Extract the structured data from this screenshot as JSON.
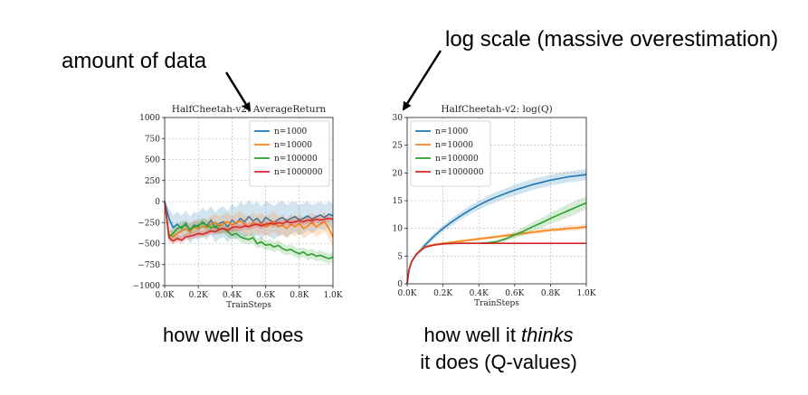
{
  "annotations": {
    "amount_of_data": "amount of data",
    "log_scale": "log scale (massive overestimation)"
  },
  "captions": {
    "left": "how well it does",
    "right_line1_pre": "how well it ",
    "right_line1_em": "thinks",
    "right_line2": "it does (Q-values)"
  },
  "colors": {
    "n1000": "#1f77b4",
    "n10000": "#ff7f0e",
    "n100000": "#2ca02c",
    "n1000000": "#d62728",
    "grid": "#b0b0b0"
  },
  "chart_data": [
    {
      "type": "line",
      "title": "HalfCheetah-v2: AverageReturn",
      "xlabel": "TrainSteps",
      "ylabel": "",
      "xlim": [
        0,
        1000
      ],
      "ylim": [
        -1000,
        1000
      ],
      "xticks": [
        0,
        200,
        400,
        600,
        800,
        1000
      ],
      "xtick_labels": [
        "0.0K",
        "0.2K",
        "0.4K",
        "0.6K",
        "0.8K",
        "1.0K"
      ],
      "yticks": [
        -1000,
        -750,
        -500,
        -250,
        0,
        250,
        500,
        750,
        1000
      ],
      "ytick_labels": [
        "−1000",
        "−750",
        "−500",
        "−250",
        "0",
        "250",
        "500",
        "750",
        "1000"
      ],
      "grid": true,
      "legend_position": "top-right",
      "x": [
        0,
        25,
        50,
        75,
        100,
        125,
        150,
        175,
        200,
        225,
        250,
        275,
        300,
        325,
        350,
        375,
        400,
        425,
        450,
        475,
        500,
        525,
        550,
        575,
        600,
        625,
        650,
        675,
        700,
        725,
        750,
        775,
        800,
        825,
        850,
        875,
        900,
        925,
        950,
        975,
        1000
      ],
      "series": [
        {
          "name": "n=1000",
          "color_key": "n1000",
          "values": [
            0,
            -200,
            -310,
            -270,
            -320,
            -260,
            -340,
            -280,
            -300,
            -240,
            -290,
            -220,
            -310,
            -260,
            -240,
            -300,
            -220,
            -260,
            -200,
            -240,
            -180,
            -230,
            -200,
            -260,
            -190,
            -220,
            -250,
            -210,
            -190,
            -230,
            -200,
            -180,
            -220,
            -200,
            -170,
            -210,
            -180,
            -160,
            -190,
            -150,
            -170
          ],
          "spread": [
            30,
            120,
            150,
            150,
            150,
            150,
            160,
            160,
            160,
            170,
            170,
            170,
            180,
            180,
            180,
            190,
            190,
            190,
            200,
            200,
            200,
            200,
            200,
            200,
            200,
            200,
            200,
            200,
            200,
            190,
            190,
            180,
            180,
            180,
            170,
            170,
            160,
            160,
            150,
            150,
            150
          ]
        },
        {
          "name": "n=10000",
          "color_key": "n10000",
          "values": [
            0,
            -390,
            -420,
            -380,
            -350,
            -320,
            -360,
            -300,
            -330,
            -290,
            -310,
            -270,
            -250,
            -290,
            -260,
            -240,
            -280,
            -250,
            -230,
            -270,
            -300,
            -250,
            -280,
            -260,
            -300,
            -270,
            -240,
            -300,
            -280,
            -320,
            -270,
            -300,
            -260,
            -320,
            -290,
            -250,
            -300,
            -270,
            -240,
            -320,
            -420
          ],
          "spread": [
            20,
            60,
            80,
            80,
            80,
            90,
            90,
            90,
            90,
            100,
            100,
            100,
            100,
            110,
            110,
            110,
            110,
            110,
            120,
            120,
            120,
            120,
            120,
            120,
            120,
            120,
            120,
            120,
            120,
            120,
            120,
            120,
            120,
            120,
            120,
            120,
            120,
            120,
            120,
            120,
            120
          ]
        },
        {
          "name": "n=100000",
          "color_key": "n100000",
          "values": [
            0,
            -420,
            -380,
            -320,
            -300,
            -280,
            -330,
            -300,
            -280,
            -260,
            -280,
            -310,
            -290,
            -330,
            -320,
            -360,
            -400,
            -380,
            -420,
            -440,
            -450,
            -430,
            -500,
            -480,
            -520,
            -510,
            -540,
            -520,
            -560,
            -580,
            -570,
            -600,
            -620,
            -600,
            -640,
            -620,
            -650,
            -640,
            -660,
            -680,
            -660
          ],
          "spread": [
            20,
            60,
            60,
            60,
            60,
            60,
            60,
            60,
            60,
            60,
            60,
            60,
            60,
            60,
            60,
            60,
            60,
            60,
            60,
            60,
            60,
            60,
            60,
            60,
            60,
            60,
            60,
            60,
            60,
            60,
            60,
            60,
            60,
            60,
            60,
            60,
            60,
            60,
            60,
            60,
            60
          ]
        },
        {
          "name": "n=1000000",
          "color_key": "n1000000",
          "values": [
            0,
            -430,
            -470,
            -440,
            -460,
            -420,
            -410,
            -400,
            -380,
            -390,
            -370,
            -350,
            -360,
            -330,
            -320,
            -340,
            -310,
            -300,
            -310,
            -290,
            -300,
            -280,
            -270,
            -290,
            -270,
            -260,
            -270,
            -250,
            -260,
            -240,
            -250,
            -240,
            -230,
            -240,
            -220,
            -230,
            -210,
            -220,
            -210,
            -200,
            -210
          ],
          "spread": [
            20,
            40,
            40,
            40,
            40,
            40,
            40,
            40,
            40,
            40,
            40,
            40,
            40,
            40,
            40,
            40,
            40,
            40,
            40,
            40,
            40,
            40,
            40,
            40,
            40,
            40,
            40,
            40,
            40,
            40,
            40,
            40,
            40,
            40,
            40,
            40,
            40,
            40,
            40,
            40,
            40
          ]
        }
      ]
    },
    {
      "type": "line",
      "title": "HalfCheetah-v2: log(Q)",
      "xlabel": "TrainSteps",
      "ylabel": "",
      "xlim": [
        0,
        1000
      ],
      "ylim": [
        0,
        30
      ],
      "xticks": [
        0,
        200,
        400,
        600,
        800,
        1000
      ],
      "xtick_labels": [
        "0.0K",
        "0.2K",
        "0.4K",
        "0.6K",
        "0.8K",
        "1.0K"
      ],
      "yticks": [
        0,
        5,
        10,
        15,
        20,
        25,
        30
      ],
      "ytick_labels": [
        "0",
        "5",
        "10",
        "15",
        "20",
        "25",
        "30"
      ],
      "grid": true,
      "legend_position": "top-left",
      "x": [
        0,
        10,
        25,
        50,
        75,
        100,
        150,
        200,
        250,
        300,
        350,
        400,
        450,
        500,
        550,
        600,
        650,
        700,
        750,
        800,
        850,
        900,
        950,
        1000
      ],
      "series": [
        {
          "name": "n=1000",
          "color_key": "n1000",
          "values": [
            0,
            2.5,
            4.0,
            5.2,
            6.1,
            7.0,
            8.6,
            10.0,
            11.2,
            12.3,
            13.3,
            14.2,
            15.0,
            15.7,
            16.3,
            16.9,
            17.4,
            17.9,
            18.3,
            18.7,
            19.0,
            19.3,
            19.5,
            19.7
          ],
          "spread": [
            0,
            0.2,
            0.3,
            0.4,
            0.5,
            0.5,
            0.6,
            0.6,
            0.7,
            0.7,
            0.8,
            0.8,
            0.9,
            0.9,
            0.9,
            1.0,
            1.0,
            1.0,
            1.0,
            1.0,
            1.0,
            1.0,
            1.0,
            1.0
          ]
        },
        {
          "name": "n=10000",
          "color_key": "n10000",
          "values": [
            0,
            2.5,
            4.0,
            5.3,
            6.1,
            6.7,
            7.1,
            7.3,
            7.5,
            7.7,
            7.9,
            8.1,
            8.3,
            8.5,
            8.7,
            8.9,
            9.1,
            9.3,
            9.5,
            9.7,
            9.8,
            10.0,
            10.1,
            10.3
          ],
          "spread": [
            0,
            0.1,
            0.1,
            0.2,
            0.2,
            0.2,
            0.2,
            0.2,
            0.2,
            0.3,
            0.3,
            0.3,
            0.3,
            0.3,
            0.3,
            0.4,
            0.4,
            0.4,
            0.4,
            0.4,
            0.4,
            0.5,
            0.5,
            0.5
          ]
        },
        {
          "name": "n=100000",
          "color_key": "n100000",
          "values": [
            0,
            2.5,
            4.0,
            5.3,
            6.0,
            6.6,
            7.0,
            7.2,
            7.3,
            7.3,
            7.3,
            7.3,
            7.4,
            7.6,
            8.1,
            8.8,
            9.5,
            10.3,
            11.0,
            11.8,
            12.5,
            13.2,
            13.9,
            14.6
          ],
          "spread": [
            0,
            0.1,
            0.1,
            0.1,
            0.1,
            0.1,
            0.1,
            0.1,
            0.1,
            0.1,
            0.1,
            0.1,
            0.2,
            0.3,
            0.4,
            0.6,
            0.7,
            0.8,
            0.9,
            1.0,
            1.1,
            1.2,
            1.2,
            1.2
          ]
        },
        {
          "name": "n=1000000",
          "color_key": "n1000000",
          "values": [
            0,
            2.5,
            4.0,
            5.3,
            6.0,
            6.6,
            7.0,
            7.2,
            7.25,
            7.3,
            7.3,
            7.3,
            7.3,
            7.3,
            7.3,
            7.3,
            7.3,
            7.3,
            7.3,
            7.3,
            7.3,
            7.3,
            7.3,
            7.3
          ],
          "spread": [
            0,
            0.05,
            0.05,
            0.05,
            0.05,
            0.05,
            0.05,
            0.05,
            0.05,
            0.05,
            0.05,
            0.05,
            0.05,
            0.05,
            0.05,
            0.05,
            0.05,
            0.05,
            0.05,
            0.05,
            0.05,
            0.05,
            0.05,
            0.05
          ]
        }
      ]
    }
  ]
}
